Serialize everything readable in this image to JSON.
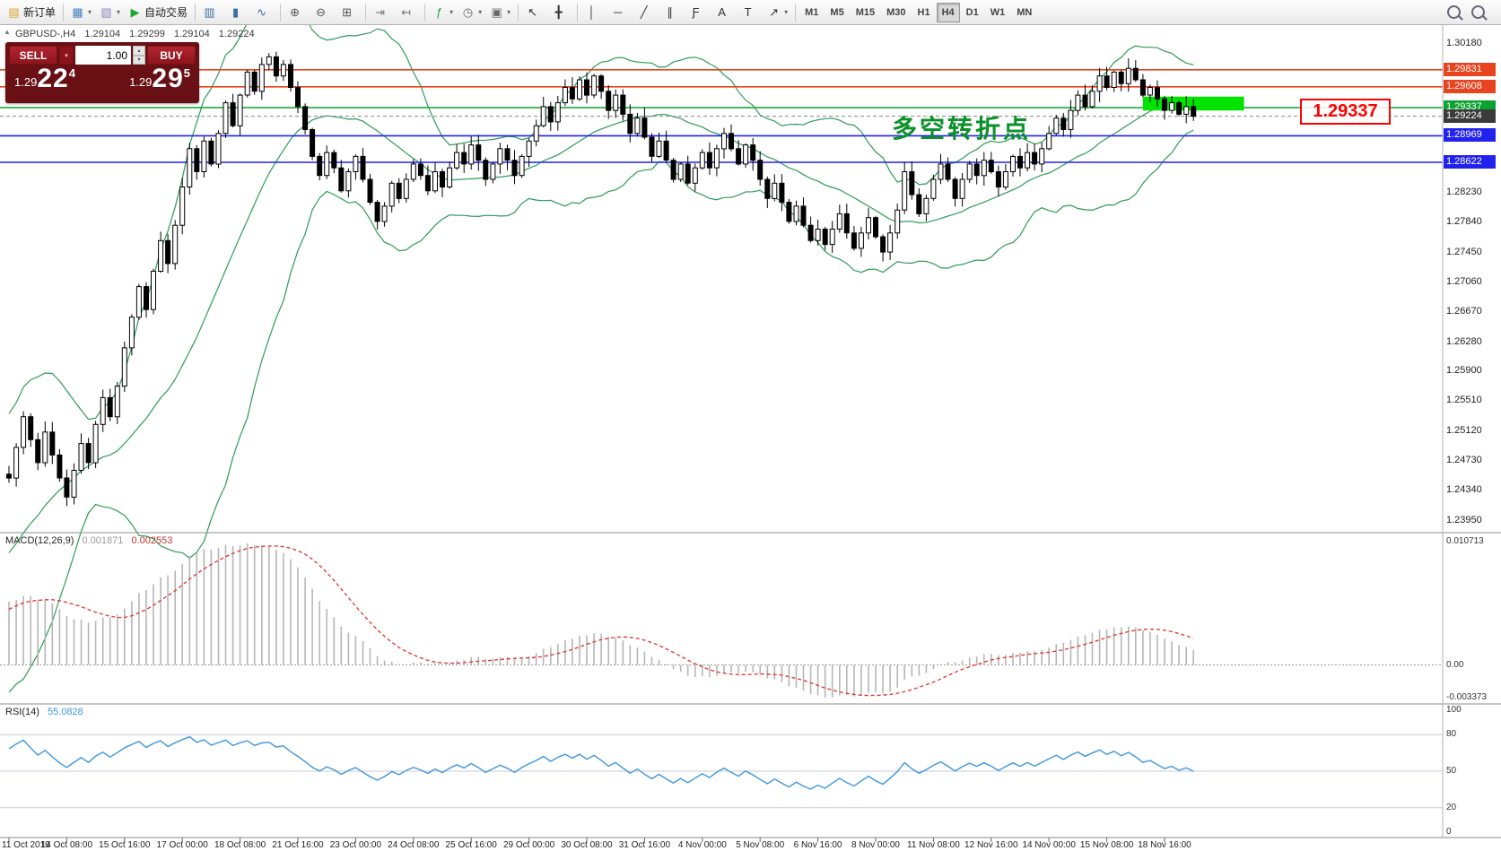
{
  "toolbar": {
    "dropdown_glyph": "▾",
    "groups": [
      {
        "items": [
          {
            "name": "new-order-button",
            "glyph": "▤",
            "glyph_color": "#d8a32a",
            "label": "新订单"
          }
        ]
      },
      {
        "items": [
          {
            "name": "new-chart-button",
            "glyph": "▦",
            "glyph_color": "#4a7fbf",
            "dd": true
          },
          {
            "name": "profiles-button",
            "glyph": "▧",
            "glyph_color": "#8a8abf",
            "dd": true
          },
          {
            "name": "auto-trading-button",
            "glyph": "▶",
            "glyph_color": "#1fa82f",
            "label": "自动交易"
          }
        ]
      },
      {
        "items": [
          {
            "name": "bar-chart-button",
            "glyph": "▥",
            "glyph_color": "#3a6ea8"
          },
          {
            "name": "candlestick-chart-button",
            "glyph": "▮",
            "glyph_color": "#3a6ea8"
          },
          {
            "name": "line-chart-button",
            "glyph": "∿",
            "glyph_color": "#3a6ea8"
          }
        ]
      },
      {
        "items": [
          {
            "name": "zoom-in-button",
            "glyph": "⊕",
            "glyph_color": "#555555"
          },
          {
            "name": "zoom-out-button",
            "glyph": "⊖",
            "glyph_color": "#555555"
          },
          {
            "name": "tile-windows-button",
            "glyph": "⊞",
            "glyph_color": "#555555"
          }
        ]
      },
      {
        "items": [
          {
            "name": "auto-scroll-button",
            "glyph": "⇥",
            "glyph_color": "#777777"
          },
          {
            "name": "chart-shift-button",
            "glyph": "↤",
            "glyph_color": "#777777"
          }
        ]
      },
      {
        "items": [
          {
            "name": "indicators-button",
            "glyph": "ƒ",
            "glyph_color": "#1fa82f",
            "dd": true
          },
          {
            "name": "periods-button",
            "glyph": "◷",
            "glyph_color": "#666666",
            "dd": true
          },
          {
            "name": "templates-button",
            "glyph": "▣",
            "glyph_color": "#666666",
            "dd": true
          }
        ]
      },
      {
        "items": [
          {
            "name": "cursor-button",
            "glyph": "↖",
            "glyph_color": "#333333"
          },
          {
            "name": "crosshair-button",
            "glyph": "╋",
            "glyph_color": "#333333"
          }
        ]
      },
      {
        "items": [
          {
            "name": "vertical-line-button",
            "glyph": "│",
            "glyph_color": "#333333"
          },
          {
            "name": "horizontal-line-button",
            "glyph": "─",
            "glyph_color": "#333333"
          },
          {
            "name": "trendline-button",
            "glyph": "╱",
            "glyph_color": "#333333"
          },
          {
            "name": "equidistant-channel-button",
            "glyph": "∥",
            "glyph_color": "#333333"
          },
          {
            "name": "fibonacci-button",
            "glyph": "Ƒ",
            "glyph_color": "#333333"
          },
          {
            "name": "text-button",
            "glyph": "A",
            "glyph_color": "#333333"
          },
          {
            "name": "text-label-button",
            "glyph": "T",
            "glyph_color": "#333333"
          },
          {
            "name": "arrows-button",
            "glyph": "↗",
            "glyph_color": "#333333",
            "dd": true
          }
        ]
      }
    ],
    "timeframes": {
      "items": [
        "M1",
        "M5",
        "M15",
        "M30",
        "H1",
        "H4",
        "D1",
        "W1",
        "MN"
      ],
      "active": "H4"
    },
    "right": [
      {
        "name": "search-icon"
      },
      {
        "name": "symbol-search-icon"
      }
    ]
  },
  "chart": {
    "collapse_glyph": "▲",
    "symbol_period": "GBPUSD-,H4",
    "open": "1.29104",
    "high": "1.29299",
    "low": "1.29104",
    "close": "1.29224"
  },
  "trade_panel": {
    "sell_label": "SELL",
    "buy_label": "BUY",
    "volume": "1.00",
    "dropdown_glyph": "▾",
    "spin_up": "▴",
    "spin_down": "▾",
    "bid": {
      "prefix": "1.29",
      "big": "22",
      "sup": "4"
    },
    "ask": {
      "prefix": "1.29",
      "big": "29",
      "sup": "5"
    }
  },
  "annotations": {
    "turning_point": {
      "text": "多空转折点",
      "color": "#0a9128"
    },
    "price_box": {
      "text": "1.29337",
      "color": "#ff0000"
    }
  },
  "indicators": {
    "macd": {
      "name": "MACD(12,26,9)",
      "value_main": "0.001871",
      "value_signal": "0.002553",
      "axis_max": "0.010713",
      "axis_zero": "0.00",
      "axis_min": "-0.003373"
    },
    "rsi": {
      "name": "RSI(14)",
      "value": "55.0828",
      "axis_labels": [
        "100",
        "80",
        "50",
        "20",
        "0"
      ],
      "axis_values": [
        100,
        80,
        50,
        20,
        0
      ]
    }
  },
  "chart_data": {
    "type": "candlestick",
    "symbol": "GBPUSD",
    "timeframe": "H4",
    "price_axis_ticks": [
      {
        "label": "1.30180",
        "price": 1.3018
      },
      {
        "label": "1.28230",
        "price": 1.2823
      },
      {
        "label": "1.27840",
        "price": 1.2784
      },
      {
        "label": "1.27450",
        "price": 1.2745
      },
      {
        "label": "1.27060",
        "price": 1.2706
      },
      {
        "label": "1.26670",
        "price": 1.2667
      },
      {
        "label": "1.26280",
        "price": 1.2628
      },
      {
        "label": "1.25900",
        "price": 1.259
      },
      {
        "label": "1.25510",
        "price": 1.2551
      },
      {
        "label": "1.25120",
        "price": 1.2512
      },
      {
        "label": "1.24730",
        "price": 1.2473
      },
      {
        "label": "1.24340",
        "price": 1.2434
      },
      {
        "label": "1.23950",
        "price": 1.2395
      }
    ],
    "levels": [
      {
        "price": 1.29831,
        "label": "1.29831",
        "color": "#e8441f",
        "type": "resistance"
      },
      {
        "price": 1.29608,
        "label": "1.29608",
        "color": "#e8441f",
        "type": "resistance"
      },
      {
        "price": 1.29337,
        "label": "1.29337",
        "color": "#0aa32f",
        "type": "pivot"
      },
      {
        "price": 1.28969,
        "label": "1.28969",
        "color": "#2222ee",
        "type": "support"
      },
      {
        "price": 1.28622,
        "label": "1.28622",
        "color": "#2222ee",
        "type": "support"
      }
    ],
    "current_price": {
      "price": 1.29224,
      "label": "1.29224",
      "color": "#3a3a3a"
    },
    "highlight": {
      "from_index": 157,
      "to_index": 171,
      "price_top": 1.2948,
      "price_bottom": 1.293,
      "color": "#00e400"
    },
    "time_labels": [
      "11 Oct 2019",
      "14 Oct 08:00",
      "15 Oct 16:00",
      "17 Oct 00:00",
      "18 Oct 08:00",
      "21 Oct 16:00",
      "23 Oct 00:00",
      "24 Oct 08:00",
      "25 Oct 16:00",
      "29 Oct 00:00",
      "30 Oct 08:00",
      "31 Oct 16:00",
      "4 Nov 00:00",
      "5 Nov 08:00",
      "6 Nov 16:00",
      "8 Nov 00:00",
      "11 Nov 08:00",
      "12 Nov 16:00",
      "14 Nov 00:00",
      "15 Nov 08:00",
      "18 Nov 16:00"
    ],
    "label_every": 8,
    "closes_pre": [
      1.221,
      1.2195,
      1.222,
      1.2205,
      1.223,
      1.2215,
      1.224,
      1.2225,
      1.225,
      1.2235,
      1.222,
      1.224,
      1.226,
      1.2245,
      1.2265,
      1.225,
      1.227,
      1.2255,
      1.2275,
      1.229,
      1.231,
      1.235,
      1.2395,
      1.244,
      1.248,
      1.246,
      1.243,
      1.245,
      1.247,
      1.2455
    ],
    "closes": [
      1.245,
      1.249,
      1.253,
      1.25,
      1.247,
      1.251,
      1.248,
      1.245,
      1.2425,
      1.246,
      1.2495,
      1.247,
      1.252,
      1.2555,
      1.253,
      1.257,
      1.262,
      1.266,
      1.27,
      1.267,
      1.272,
      1.276,
      1.273,
      1.278,
      1.283,
      1.288,
      1.285,
      1.289,
      1.286,
      1.29,
      1.294,
      1.291,
      1.295,
      1.298,
      1.2955,
      1.299,
      1.3,
      1.2975,
      1.299,
      1.296,
      1.2935,
      1.2905,
      1.287,
      1.2845,
      1.2875,
      1.2855,
      1.2825,
      1.285,
      1.287,
      1.284,
      1.281,
      1.2785,
      1.2805,
      1.2835,
      1.2815,
      1.284,
      1.286,
      1.2845,
      1.2825,
      1.285,
      1.283,
      1.2855,
      1.2875,
      1.286,
      1.2885,
      1.2865,
      1.284,
      1.286,
      1.288,
      1.2865,
      1.2845,
      1.287,
      1.289,
      1.291,
      1.2935,
      1.2915,
      1.294,
      1.296,
      1.2945,
      1.297,
      1.295,
      1.2975,
      1.2955,
      1.293,
      1.295,
      1.2925,
      1.29,
      1.292,
      1.2895,
      1.287,
      1.289,
      1.2865,
      1.284,
      1.286,
      1.2835,
      1.2855,
      1.2875,
      1.2855,
      1.288,
      1.29,
      1.288,
      1.286,
      1.2885,
      1.2865,
      1.284,
      1.2815,
      1.2835,
      1.281,
      1.2785,
      1.2805,
      1.278,
      1.276,
      1.2775,
      1.2755,
      1.2775,
      1.2795,
      1.277,
      1.275,
      1.277,
      1.279,
      1.2765,
      1.2745,
      1.277,
      1.28,
      1.285,
      1.282,
      1.2795,
      1.2815,
      1.284,
      1.286,
      1.284,
      1.2815,
      1.284,
      1.286,
      1.2845,
      1.2865,
      1.285,
      1.283,
      1.285,
      1.287,
      1.2855,
      1.2875,
      1.286,
      1.288,
      1.29,
      1.292,
      1.2905,
      1.293,
      1.295,
      1.2935,
      1.2955,
      1.2975,
      1.296,
      1.298,
      1.2965,
      1.2985,
      1.297,
      1.295,
      1.296,
      1.2945,
      1.293,
      1.294,
      1.2925,
      1.2935,
      1.29224
    ],
    "bollinger": {
      "period": 20,
      "deviation": 2,
      "color": "#2e9b57"
    },
    "macd": {
      "fast": 12,
      "slow": 26,
      "signal": 9,
      "hist_color": "#b6b6b6",
      "signal_color": "#e03030"
    },
    "rsi": {
      "period": 14,
      "color": "#3e96dc",
      "levels": [
        80,
        50,
        20
      ],
      "level_color": "#c7cbd6"
    },
    "candle_up_color": "#ffffff",
    "candle_down_color": "#000000",
    "candle_border": "#000000"
  }
}
